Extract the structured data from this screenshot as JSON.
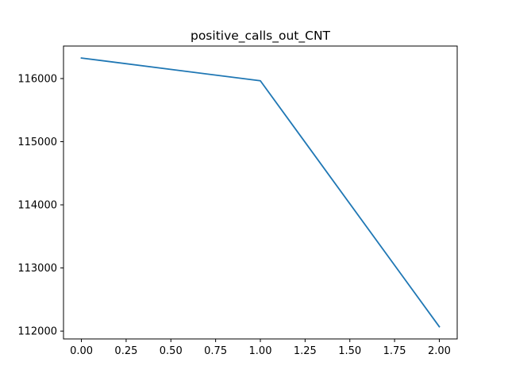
{
  "chart_data": {
    "type": "line",
    "title": "positive_calls_out_CNT",
    "xlabel": "",
    "ylabel": "",
    "grid": false,
    "legend": "none",
    "xlim": [
      -0.1,
      2.1
    ],
    "ylim": [
      111876,
      116515
    ],
    "x_ticks": [
      0.0,
      0.25,
      0.5,
      0.75,
      1.0,
      1.25,
      1.5,
      1.75,
      2.0
    ],
    "x_tick_labels": [
      "0.00",
      "0.25",
      "0.50",
      "0.75",
      "1.00",
      "1.25",
      "1.50",
      "1.75",
      "2.00"
    ],
    "y_ticks": [
      112000,
      113000,
      114000,
      115000,
      116000
    ],
    "y_tick_labels": [
      "112000",
      "113000",
      "114000",
      "115000",
      "116000"
    ],
    "series": [
      {
        "color": "#1f77b4",
        "x": [
          0,
          1,
          2
        ],
        "y": [
          116325,
          115965,
          112070
        ]
      }
    ]
  }
}
